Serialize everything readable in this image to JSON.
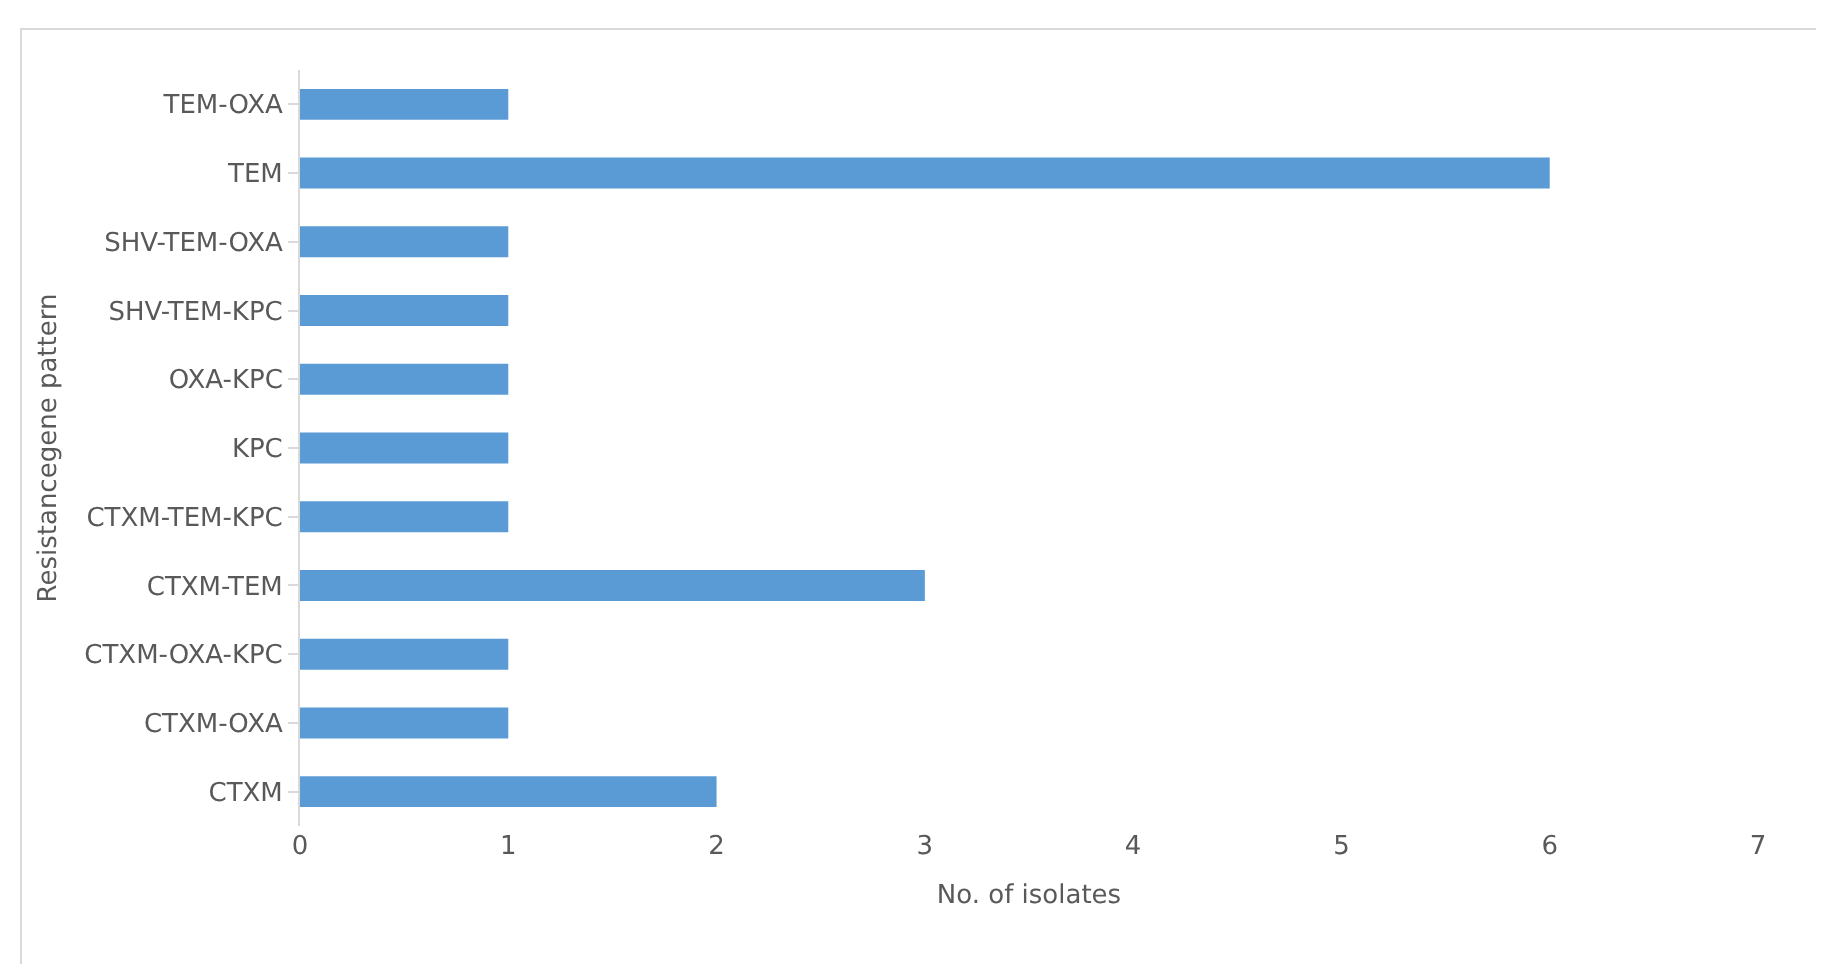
{
  "chart_data": {
    "type": "bar",
    "orientation": "horizontal",
    "xlabel": "No. of isolates",
    "ylabel": "Resistancegene pattern",
    "categories": [
      "TEM-OXA",
      "TEM",
      "SHV-TEM-OXA",
      "SHV-TEM-KPC",
      "OXA-KPC",
      "KPC",
      "CTXM-TEM-KPC",
      "CTXM-TEM",
      "CTXM-OXA-KPC",
      "CTXM-OXA",
      "CTXM"
    ],
    "values": [
      1,
      6,
      1,
      1,
      1,
      1,
      1,
      3,
      1,
      1,
      2
    ],
    "color": "#5b9bd5",
    "xlim": [
      0,
      7
    ],
    "xticks": [
      0,
      1,
      2,
      3,
      4,
      5,
      6,
      7
    ],
    "grid": false
  }
}
